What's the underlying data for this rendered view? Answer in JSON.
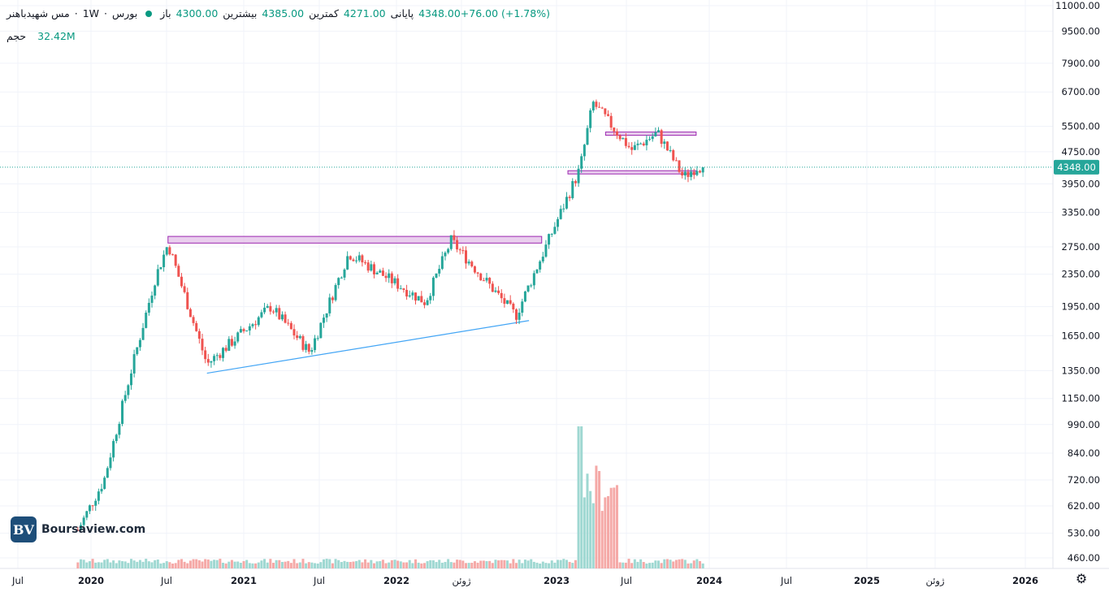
{
  "header": {
    "symbol": "مس شهیدباهنر",
    "interval": "1W",
    "exchange": "بورس",
    "open_label": "باز",
    "open_value": "4300.00",
    "high_label": "بیشترین",
    "high_value": "4385.00",
    "low_label": "کمترین",
    "low_value": "4271.00",
    "close_label": "پایانی",
    "close_value": "4348.00+76.00 (+1.78%)"
  },
  "volume": {
    "label": "حجم",
    "value": "32.42M"
  },
  "logo": {
    "mark": "BV",
    "text": "Boursaview.com"
  },
  "last_price_tag": "4348.00",
  "colors": {
    "up": "#26a69a",
    "down": "#ef5350",
    "zone": "#e1bee7",
    "zone_border": "#9c27b0",
    "trendline": "#42a5f5",
    "price_tag": "#26a69a"
  },
  "chart_data": {
    "type": "candlestick",
    "scale": "log",
    "y_ticks": [
      "11000.00",
      "9500.00",
      "7900.00",
      "6700.00",
      "5500.00",
      "4750.00",
      "3950.00",
      "3350.00",
      "2750.00",
      "2350.00",
      "1950.00",
      "1650.00",
      "1350.00",
      "1150.00",
      "990.00",
      "840.00",
      "720.00",
      "620.00",
      "530.00",
      "460.00"
    ],
    "x_ticks": [
      "Jul",
      "2020",
      "Jul",
      "2021",
      "Jul",
      "2022",
      "ژوئن",
      "2023",
      "Jul",
      "2024",
      "Jul",
      "2025",
      "ژوئن",
      "2026"
    ],
    "resistance_zones": [
      {
        "from_date": "2020-07",
        "to_date": "2022-12",
        "low": 2810,
        "high": 2920
      },
      {
        "from_date": "2023-05",
        "to_date": "2023-12",
        "low": 5250,
        "high": 5320
      },
      {
        "from_date": "2023-02",
        "to_date": "2023-12",
        "low": 4190,
        "high": 4260
      }
    ],
    "trendline": {
      "start": {
        "date": "2020-10",
        "price": 1330
      },
      "end": {
        "date": "2022-11",
        "price": 1800
      }
    },
    "last_close": 4348,
    "series_summary": [
      {
        "date": "2019-12",
        "close": 540
      },
      {
        "date": "2020-02",
        "close": 720
      },
      {
        "date": "2020-04",
        "close": 1300
      },
      {
        "date": "2020-06",
        "close": 2300
      },
      {
        "date": "2020-07",
        "close": 2800
      },
      {
        "date": "2020-10",
        "close": 1400
      },
      {
        "date": "2021-03",
        "close": 1950
      },
      {
        "date": "2021-06",
        "close": 1500
      },
      {
        "date": "2021-09",
        "close": 2650
      },
      {
        "date": "2022-03",
        "close": 2000
      },
      {
        "date": "2022-05",
        "close": 2850
      },
      {
        "date": "2022-10",
        "close": 1850
      },
      {
        "date": "2023-01",
        "close": 3100
      },
      {
        "date": "2023-03",
        "close": 4300
      },
      {
        "date": "2023-04",
        "close": 6300
      },
      {
        "date": "2023-07",
        "close": 4800
      },
      {
        "date": "2023-09",
        "close": 5300
      },
      {
        "date": "2023-11",
        "close": 4100
      },
      {
        "date": "2023-12",
        "close": 4348
      }
    ],
    "volume_peak": {
      "date": "2023-03",
      "note": "spike"
    }
  }
}
